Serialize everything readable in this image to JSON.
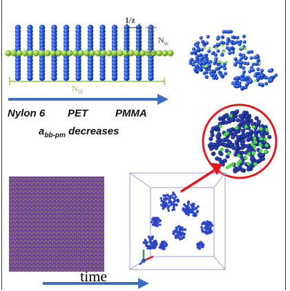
{
  "brush_diagram": {
    "spacing_label": "1/z",
    "side_chain_label": "N",
    "side_chain_sub": "sc",
    "backbone_label": "N",
    "backbone_sub": "bb"
  },
  "polymer_trend": {
    "labels": [
      "Nylon 6",
      "PET",
      "PMMA"
    ],
    "param_symbol": "a",
    "param_sub": "bb-pm",
    "param_text": "decreases"
  },
  "simulation": {
    "time_label": "time"
  },
  "colors": {
    "bead_blue": "#1f4fd8",
    "backbone_green": "#8cc63f",
    "arrow_blue": "#3a6fc4",
    "highlight_red": "#e3161d",
    "box_outline": "#9a9ad8"
  }
}
